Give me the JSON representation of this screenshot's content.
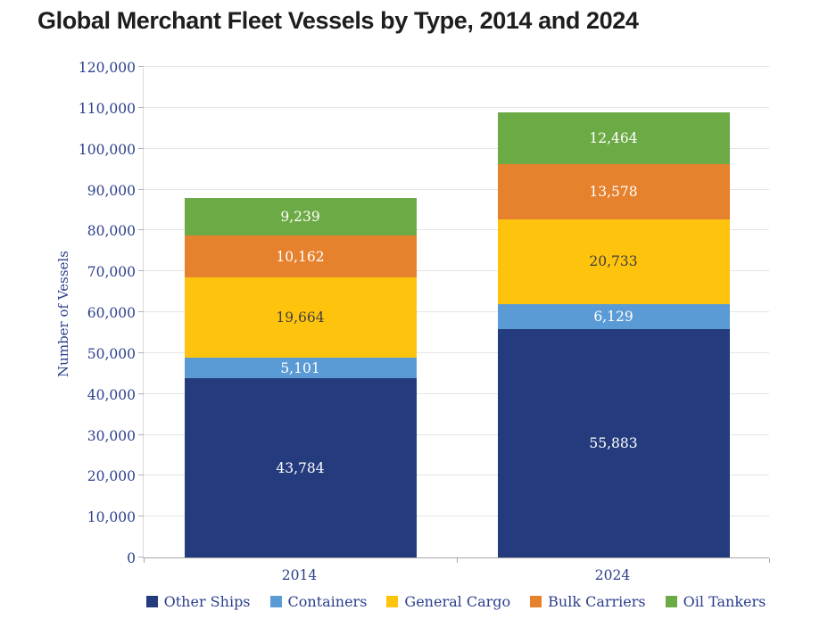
{
  "title": "Global Merchant Fleet Vessels by Type, 2014 and 2024",
  "chart_data": {
    "type": "bar",
    "stacked": true,
    "title": "Global Merchant Fleet Vessels by Type, 2014 and 2024",
    "ylabel": "Number of Vessels",
    "xlabel": "",
    "categories": [
      "2014",
      "2024"
    ],
    "series": [
      {
        "name": "Other Ships",
        "color": "#243c7e",
        "label_color": "#ffffff",
        "values": [
          43784,
          55883
        ]
      },
      {
        "name": "Containers",
        "color": "#5b9bd5",
        "label_color": "#ffffff",
        "values": [
          5101,
          6129
        ]
      },
      {
        "name": "General Cargo",
        "color": "#fec30d",
        "label_color": "#3f3f3f",
        "values": [
          19664,
          20733
        ]
      },
      {
        "name": "Bulk Carriers",
        "color": "#e6812e",
        "label_color": "#ffffff",
        "values": [
          10162,
          13578
        ]
      },
      {
        "name": "Oil Tankers",
        "color": "#6caa45",
        "label_color": "#ffffff",
        "values": [
          9239,
          12464
        ]
      }
    ],
    "totals": [
      87950,
      108787
    ],
    "ylim": [
      0,
      120000
    ],
    "ytick_step": 10000,
    "yticks": [
      "0",
      "10,000",
      "20,000",
      "30,000",
      "40,000",
      "50,000",
      "60,000",
      "70,000",
      "80,000",
      "90,000",
      "100,000",
      "110,000",
      "120,000"
    ],
    "grid": true,
    "legend_position": "bottom",
    "legend_labels": [
      "Other Ships",
      "Containers",
      "General Cargo",
      "Bulk Carriers",
      "Oil Tankers"
    ]
  },
  "colors": {
    "axis_text": "#2b3f8c",
    "title_text": "#1e1e20",
    "gridline": "#e5e5e6",
    "axis_line": "#a6a6a6"
  }
}
